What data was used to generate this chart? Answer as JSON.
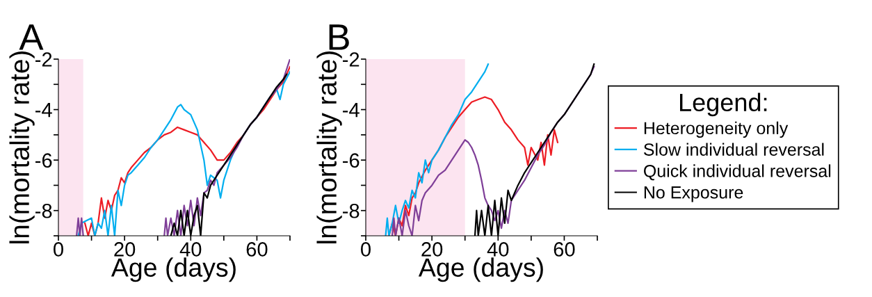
{
  "chart_data": [
    {
      "type": "line",
      "title": "A",
      "xlabel": "Age (days)",
      "ylabel": "ln(mortality rate)",
      "xlim": [
        0,
        70
      ],
      "ylim": [
        -9,
        -2
      ],
      "xticks": [
        0,
        {
          "value": 10,
          "label": null
        },
        20,
        {
          "value": 30,
          "label": null
        },
        40,
        {
          "value": 50,
          "label": null
        },
        60,
        {
          "value": 70,
          "label": null
        }
      ],
      "yticks": [
        -2,
        {
          "value": -3,
          "label": null
        },
        -4,
        {
          "value": -5,
          "label": null
        },
        -6,
        {
          "value": -7,
          "label": null
        },
        -8,
        {
          "value": -9,
          "label": null
        }
      ],
      "grid": false,
      "legend": false,
      "bands": [
        {
          "axis": "x",
          "from": 0,
          "to": 7.5,
          "color": "#fce4f0"
        }
      ],
      "series": [
        {
          "color": "#ed1c24",
          "x": [
            8,
            9,
            10,
            11,
            12,
            13,
            14,
            15,
            16,
            17,
            18,
            19,
            20,
            21,
            22,
            24,
            26,
            28,
            30,
            32,
            34,
            36,
            38,
            40,
            42,
            44,
            46,
            48,
            50,
            52,
            54,
            56,
            58,
            60,
            62,
            64,
            66,
            68,
            70
          ],
          "values": [
            -8.5,
            -9,
            -8.5,
            -9,
            -8.5,
            -7.5,
            -8.3,
            -7.6,
            -8.0,
            -7.4,
            -7.2,
            -6.7,
            -6.9,
            -6.5,
            -6.3,
            -6.0,
            -5.7,
            -5.5,
            -5.2,
            -5.0,
            -4.9,
            -4.7,
            -4.8,
            -4.9,
            -5.0,
            -5.3,
            -5.6,
            -6.0,
            -6.0,
            -5.7,
            -5.3,
            -5.0,
            -4.6,
            -4.3,
            -4.0,
            -3.6,
            -3.2,
            -2.9,
            -2.3
          ]
        },
        {
          "color": "#00aeef",
          "x": [
            6,
            7,
            10,
            11,
            12,
            13,
            14,
            15,
            16,
            17,
            18,
            19,
            20,
            21,
            22,
            24,
            26,
            28,
            30,
            32,
            34,
            36,
            37,
            38,
            40,
            42,
            43,
            44,
            45,
            46,
            48,
            49,
            50,
            52,
            54,
            56,
            58,
            60,
            62,
            64,
            66,
            67,
            68,
            70
          ],
          "values": [
            -9,
            -8.5,
            -8.3,
            -9,
            -8.5,
            -8.7,
            -8.0,
            -9,
            -7.8,
            -9,
            -7.2,
            -7.8,
            -7.0,
            -6.6,
            -6.5,
            -6.2,
            -5.9,
            -5.5,
            -5.2,
            -4.8,
            -4.4,
            -3.9,
            -3.8,
            -4.0,
            -4.2,
            -4.8,
            -5.4,
            -6.0,
            -7.0,
            -6.6,
            -6.8,
            -7.5,
            -6.8,
            -6.0,
            -5.4,
            -5.0,
            -4.6,
            -4.3,
            -3.9,
            -3.5,
            -3.2,
            -3.6,
            -3.0,
            -2.5
          ]
        },
        {
          "color": "#7f3f98",
          "x": [
            5.5,
            6,
            6.5,
            7,
            7.5,
            20,
            32,
            32.5,
            33,
            34,
            35,
            36,
            37,
            38,
            39,
            40,
            41,
            42,
            43,
            44,
            45,
            46,
            47,
            48,
            50,
            52,
            54,
            56,
            58,
            60,
            62,
            64,
            66,
            68,
            70
          ],
          "values": [
            -9,
            -8.3,
            -9,
            -8.3,
            -9,
            null,
            -9,
            -8.3,
            -9,
            -8.3,
            -9,
            -8.0,
            -9,
            -7.8,
            -8.6,
            -7.6,
            -8.6,
            -7.5,
            -8.2,
            -7.3,
            -7.2,
            -6.8,
            -7.0,
            -6.5,
            -6.2,
            -5.9,
            -5.5,
            -5.0,
            -4.6,
            -4.3,
            -3.9,
            -3.5,
            -3.2,
            -2.8,
            -2.0
          ]
        },
        {
          "color": "#000000",
          "x": [
            34,
            35,
            36,
            37,
            38,
            39,
            40,
            41,
            42,
            43,
            44,
            45,
            46,
            48,
            50,
            52,
            54,
            56,
            58,
            60,
            62,
            64,
            66,
            68,
            69
          ],
          "values": [
            -9,
            -8.5,
            -9,
            -8.0,
            -9,
            -8.0,
            -9,
            -8.2,
            -7.8,
            -9,
            -7.3,
            -7.5,
            -7.0,
            -6.6,
            -6.2,
            -5.8,
            -5.4,
            -5.0,
            -4.6,
            -4.3,
            -3.9,
            -3.5,
            -3.1,
            -2.8,
            -2.6
          ]
        }
      ]
    },
    {
      "type": "line",
      "title": "B",
      "xlabel": "Age (days)",
      "ylabel": "ln(mortality rate)",
      "xlim": [
        0,
        70
      ],
      "ylim": [
        -9,
        -2
      ],
      "xticks": [
        0,
        {
          "value": 10,
          "label": null
        },
        20,
        {
          "value": 30,
          "label": null
        },
        40,
        {
          "value": 50,
          "label": null
        },
        60,
        {
          "value": 70,
          "label": null
        }
      ],
      "yticks": [
        -2,
        {
          "value": -3,
          "label": null
        },
        -4,
        {
          "value": -5,
          "label": null
        },
        -6,
        {
          "value": -7,
          "label": null
        },
        -8,
        {
          "value": -9,
          "label": null
        }
      ],
      "grid": false,
      "legend": "right",
      "legend_title": "Legend:",
      "bands": [
        {
          "axis": "x",
          "from": 0,
          "to": 30,
          "color": "#fce4f0"
        }
      ],
      "series": [
        {
          "name": "Heterogeneity only",
          "color": "#ed1c24",
          "x": [
            7,
            8,
            9,
            10,
            11,
            12,
            13,
            14,
            15,
            16,
            18,
            20,
            22,
            24,
            26,
            28,
            30,
            32,
            34,
            36,
            38,
            40,
            42,
            44,
            46,
            48,
            49,
            50,
            52,
            53,
            54,
            55,
            56,
            57,
            58
          ],
          "values": [
            -9,
            -8.5,
            -9,
            -8.3,
            -8.6,
            -7.8,
            -8.2,
            -7.5,
            -7.3,
            -6.9,
            -6.4,
            -6.0,
            -5.6,
            -5.1,
            -4.7,
            -4.3,
            -4.0,
            -3.7,
            -3.6,
            -3.5,
            -3.6,
            -4.0,
            -4.5,
            -4.8,
            -5.2,
            -5.5,
            -6.2,
            -5.5,
            -6.0,
            -5.3,
            -6.2,
            -5.0,
            -5.8,
            -4.8,
            -5.3
          ]
        },
        {
          "name": "Slow individual reversal",
          "color": "#00aeef",
          "x": [
            6,
            6.5,
            7,
            8,
            9,
            10,
            11,
            12,
            13,
            14,
            15,
            16,
            17,
            18,
            19,
            20,
            22,
            24,
            26,
            28,
            30,
            32,
            34,
            36,
            37
          ],
          "values": [
            -9,
            -8.3,
            -9,
            -8.5,
            -7.8,
            -8.5,
            -8.0,
            -7.6,
            -7.9,
            -7.2,
            -7.5,
            -6.5,
            -6.9,
            -6.0,
            -6.5,
            -6.0,
            -5.6,
            -5.1,
            -4.6,
            -4.2,
            -3.6,
            -3.3,
            -2.9,
            -2.5,
            -2.2
          ]
        },
        {
          "name": "Quick individual reversal",
          "color": "#7f3f98",
          "x": [
            8,
            8.5,
            9,
            10,
            11,
            12,
            13,
            14,
            15,
            16,
            17,
            18,
            20,
            22,
            24,
            26,
            28,
            30,
            31,
            32,
            33,
            34,
            35,
            36,
            37,
            38,
            39,
            40,
            41,
            42,
            43,
            44,
            46,
            48,
            50,
            52,
            54,
            56,
            58,
            60,
            62,
            64,
            66,
            68,
            69
          ],
          "values": [
            -9,
            -8.3,
            -9,
            -8.3,
            -9,
            -8.0,
            -8.6,
            -9,
            -7.8,
            -8.4,
            -7.6,
            -7.3,
            -7.0,
            -6.6,
            -6.4,
            -6.0,
            -5.6,
            -5.2,
            -5.3,
            -5.5,
            -5.8,
            -6.2,
            -6.8,
            -7.5,
            -7.8,
            -8.0,
            -8.4,
            -8.0,
            -8.7,
            -8.0,
            -8.5,
            -7.6,
            -7.2,
            -6.8,
            -6.3,
            -5.8,
            -5.4,
            -4.9,
            -4.5,
            -4.2,
            -3.8,
            -3.4,
            -3.0,
            -2.6,
            -2.3
          ]
        },
        {
          "name": "No Exposure",
          "color": "#000000",
          "x": [
            33,
            33.5,
            34,
            35,
            36,
            37,
            38,
            39,
            40,
            41,
            42,
            43,
            44,
            46,
            48,
            50,
            52,
            54,
            56,
            58,
            60,
            62,
            64,
            66,
            68,
            69
          ],
          "values": [
            -9,
            -8.0,
            -9,
            -8.0,
            -9,
            -7.8,
            -9,
            -7.6,
            -9,
            -7.5,
            -8.5,
            -7.2,
            -7.6,
            -7.0,
            -6.5,
            -6.1,
            -5.7,
            -5.3,
            -4.9,
            -4.5,
            -4.2,
            -3.8,
            -3.4,
            -3.0,
            -2.6,
            -2.2
          ]
        }
      ]
    }
  ]
}
